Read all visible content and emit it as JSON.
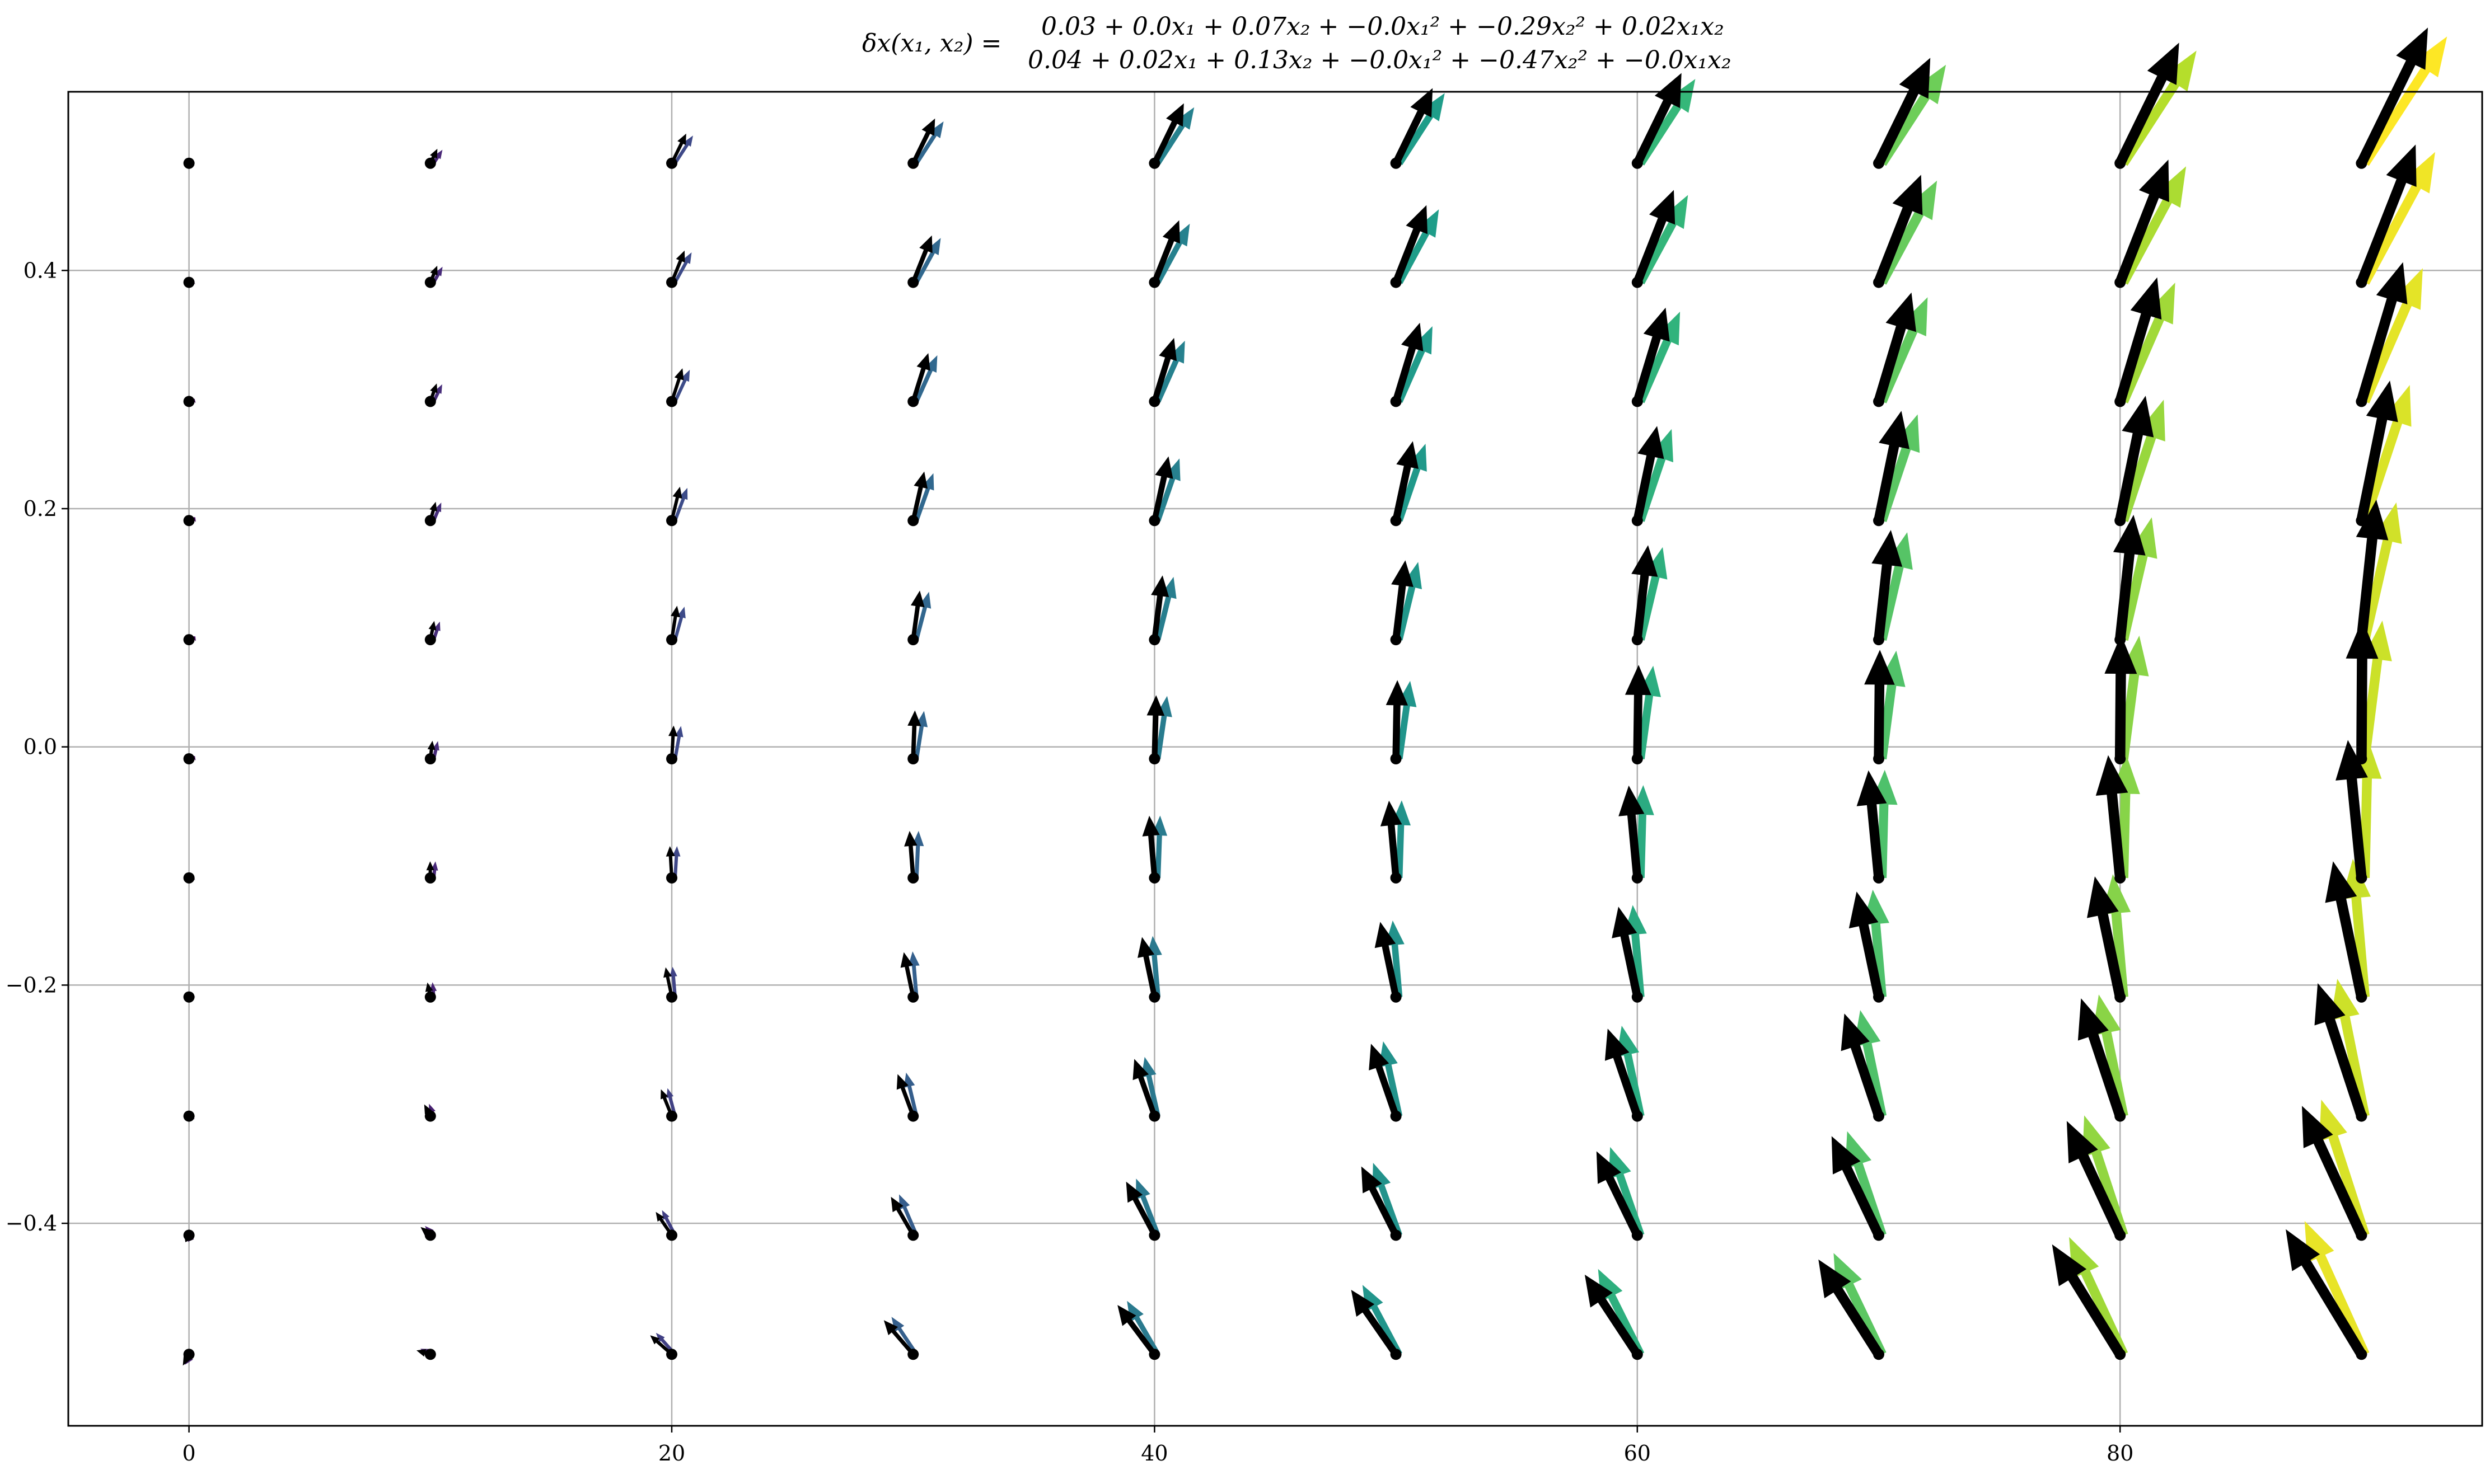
{
  "chart_data": {
    "type": "quiver",
    "title_lhs": "δx(x₁, x₂) =",
    "title_line1": "0.03 + 0.0x₁ + 0.07x₂ + −0.0x₁² + −0.29x₂² + 0.02x₁x₂",
    "title_line2": "0.04 + 0.02x₁ + 0.13x₂ + −0.0x₁² + −0.47x₂² + −0.0x₁x₂",
    "x_grid": [
      0,
      10,
      20,
      30,
      40,
      50,
      60,
      70,
      80,
      90
    ],
    "y_grid": [
      -0.51,
      -0.41,
      -0.31,
      -0.21,
      -0.11,
      -0.01,
      0.09,
      0.19,
      0.29,
      0.39,
      0.49
    ],
    "xlim": [
      -5,
      95
    ],
    "ylim": [
      -0.57,
      0.55
    ],
    "x_ticks": [
      0,
      20,
      40,
      60,
      80
    ],
    "x_tick_labels": [
      "0",
      "20",
      "40",
      "60",
      "80"
    ],
    "y_ticks": [
      -0.4,
      -0.2,
      0.0,
      0.2,
      0.4
    ],
    "y_tick_labels": [
      "−0.4",
      "−0.2",
      "0.0",
      "0.2",
      "0.4"
    ],
    "grid": true,
    "true_field": {
      "dx": "0.03 + 0.0*x1 + 0.07*x2 - 0.0*x1^2 - 0.29*x2^2 + 0.02*x1*x2",
      "dy": "0.04 + 0.02*x1 + 0.13*x2 - 0.0*x1^2 - 0.47*x2^2 - 0.0*x1*x2",
      "coef_dx": {
        "c": 0.03,
        "x1": 0.0,
        "x2": 0.07,
        "x1x1": 0.0,
        "x2x2": -0.29,
        "x1x2": 0.02
      },
      "coef_dy": {
        "c": 0.04,
        "x1": 0.02,
        "x2": 0.13,
        "x1x1": 0.0,
        "x2x2": -0.47,
        "x1x2": 0.0
      },
      "colormap": "viridis"
    },
    "learned_field_color": "#000000",
    "point_color": "#000000",
    "axis_color": "#000000",
    "grid_color": "#b0b0b0"
  }
}
